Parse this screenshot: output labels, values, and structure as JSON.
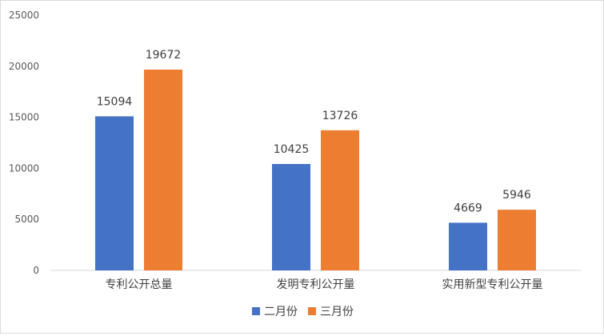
{
  "chart_data": {
    "type": "bar",
    "categories": [
      "专利公开总量",
      "发明专利公开量",
      "实用新型专利公开量"
    ],
    "series": [
      {
        "name": "二月份",
        "color": "#4472c4",
        "values": [
          15094,
          10425,
          4669
        ]
      },
      {
        "name": "三月份",
        "color": "#ed7d31",
        "values": [
          19672,
          13726,
          5946
        ]
      }
    ],
    "y_ticks": [
      "0",
      "5000",
      "10000",
      "15000",
      "20000",
      "25000"
    ],
    "ylim": [
      0,
      25000
    ],
    "grid": false,
    "legend_position": "bottom",
    "axis_color": "#d9d9d9"
  }
}
